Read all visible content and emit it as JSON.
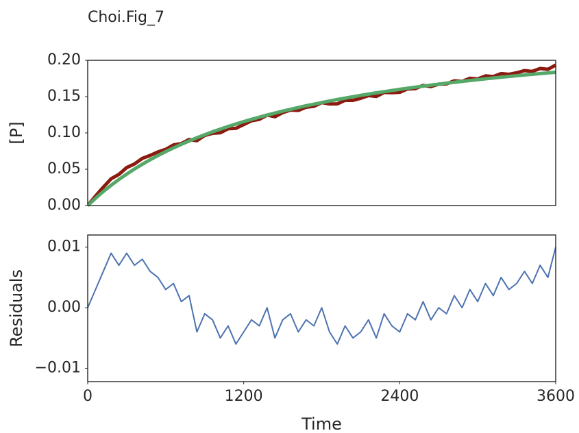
{
  "chart_data": [
    {
      "type": "line",
      "title": "Choi.Fig_7",
      "ylabel": "[P]",
      "x": [
        0,
        60,
        120,
        180,
        240,
        300,
        360,
        420,
        480,
        540,
        600,
        660,
        720,
        780,
        840,
        900,
        960,
        1020,
        1080,
        1140,
        1200,
        1260,
        1320,
        1380,
        1440,
        1500,
        1560,
        1620,
        1680,
        1740,
        1800,
        1860,
        1920,
        1980,
        2040,
        2100,
        2160,
        2220,
        2280,
        2340,
        2400,
        2460,
        2520,
        2580,
        2640,
        2700,
        2760,
        2820,
        2880,
        2940,
        3000,
        3060,
        3120,
        3180,
        3240,
        3300,
        3360,
        3420,
        3480,
        3540,
        3600
      ],
      "series": [
        {
          "color": "#8b1a10",
          "width": 5,
          "values": [
            0.0,
            0.013,
            0.0253,
            0.0369,
            0.0429,
            0.0523,
            0.0573,
            0.0649,
            0.069,
            0.0738,
            0.0773,
            0.0834,
            0.0853,
            0.0909,
            0.0893,
            0.0965,
            0.0995,
            0.1002,
            0.1058,
            0.1063,
            0.1116,
            0.1167,
            0.1187,
            0.1246,
            0.1223,
            0.128,
            0.1315,
            0.131,
            0.1354,
            0.1366,
            0.1418,
            0.1399,
            0.14,
            0.1449,
            0.1448,
            0.1477,
            0.1514,
            0.1502,
            0.1558,
            0.1554,
            0.156,
            0.1605,
            0.161,
            0.1654,
            0.1638,
            0.1671,
            0.1675,
            0.1717,
            0.171,
            0.1752,
            0.1743,
            0.1785,
            0.1776,
            0.1817,
            0.1807,
            0.1828,
            0.1858,
            0.1847,
            0.1887,
            0.1876,
            0.1935
          ]
        },
        {
          "color": "#55a868",
          "width": 5,
          "values": [
            0.0,
            0.01,
            0.0193,
            0.0279,
            0.0359,
            0.0433,
            0.0503,
            0.0569,
            0.063,
            0.0688,
            0.0743,
            0.0794,
            0.0843,
            0.0889,
            0.0933,
            0.0975,
            0.1015,
            0.1052,
            0.1088,
            0.1123,
            0.1156,
            0.1187,
            0.1217,
            0.1246,
            0.1273,
            0.13,
            0.1325,
            0.135,
            0.1374,
            0.1396,
            0.1418,
            0.1439,
            0.146,
            0.1479,
            0.1498,
            0.1517,
            0.1534,
            0.1552,
            0.1568,
            0.1584,
            0.16,
            0.1615,
            0.163,
            0.1644,
            0.1658,
            0.1671,
            0.1685,
            0.1697,
            0.171,
            0.1722,
            0.1733,
            0.1745,
            0.1756,
            0.1767,
            0.1777,
            0.1788,
            0.1798,
            0.1807,
            0.1817,
            0.1826,
            0.1835
          ]
        }
      ],
      "xlim": [
        0,
        3600
      ],
      "ylim": [
        0,
        0.2
      ],
      "yticks": [
        {
          "value": 0,
          "label": "0.00"
        },
        {
          "value": 0.05,
          "label": "0.05"
        },
        {
          "value": 0.1,
          "label": "0.10"
        },
        {
          "value": 0.15,
          "label": "0.15"
        },
        {
          "value": 0.2,
          "label": "0.20"
        }
      ]
    },
    {
      "type": "line",
      "ylabel": "Residuals",
      "xlabel": "Time",
      "x": [
        0,
        60,
        120,
        180,
        240,
        300,
        360,
        420,
        480,
        540,
        600,
        660,
        720,
        780,
        840,
        900,
        960,
        1020,
        1080,
        1140,
        1200,
        1260,
        1320,
        1380,
        1440,
        1500,
        1560,
        1620,
        1680,
        1740,
        1800,
        1860,
        1920,
        1980,
        2040,
        2100,
        2160,
        2220,
        2280,
        2340,
        2400,
        2460,
        2520,
        2580,
        2640,
        2700,
        2760,
        2820,
        2880,
        2940,
        3000,
        3060,
        3120,
        3180,
        3240,
        3300,
        3360,
        3420,
        3480,
        3540,
        3600
      ],
      "series": [
        {
          "color": "#4c72b0",
          "width": 2,
          "values": [
            0,
            0.003,
            0.006,
            0.009,
            0.007,
            0.009,
            0.007,
            0.008,
            0.006,
            0.005,
            0.003,
            0.004,
            0.001,
            0.002,
            -0.004,
            -0.001,
            -0.002,
            -0.005,
            -0.003,
            -0.006,
            -0.004,
            -0.002,
            -0.003,
            0,
            -0.005,
            -0.002,
            -0.001,
            -0.004,
            -0.002,
            -0.003,
            0,
            -0.004,
            -0.006,
            -0.003,
            -0.005,
            -0.004,
            -0.002,
            -0.005,
            -0.001,
            -0.003,
            -0.004,
            -0.001,
            -0.002,
            0.001,
            -0.002,
            0,
            -0.001,
            0.002,
            0,
            0.003,
            0.001,
            0.004,
            0.002,
            0.005,
            0.003,
            0.004,
            0.006,
            0.004,
            0.007,
            0.005,
            0.01
          ]
        }
      ],
      "xlim": [
        0,
        3600
      ],
      "xticks": [
        0,
        1200,
        2400,
        3600
      ],
      "ylim": [
        -0.0122,
        0.012
      ],
      "yticks": [
        {
          "value": -0.01,
          "label": "−0.01"
        },
        {
          "value": 0,
          "label": "0.00"
        },
        {
          "value": 0.01,
          "label": "0.01"
        }
      ]
    }
  ]
}
